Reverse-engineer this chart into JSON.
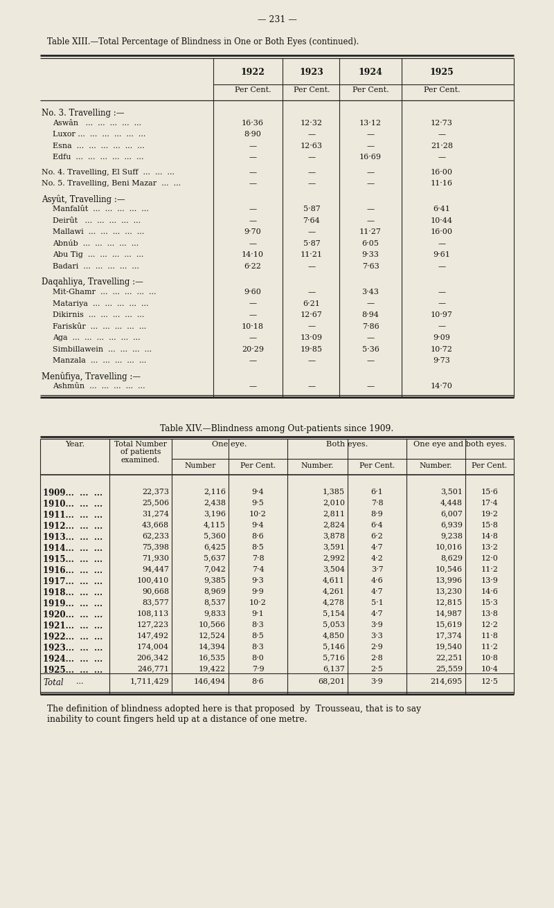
{
  "page_number": "— 231 —",
  "bg_color": "#ede9dc",
  "table13": {
    "title_parts": [
      {
        "text": "Table XIII.",
        "weight": "normal",
        "style": "normal"
      },
      {
        "text": "—",
        "weight": "normal",
        "style": "normal"
      },
      {
        "text": "Total Percentage of Blindness in One or Both Eyes (",
        "weight": "normal",
        "style": "normal"
      },
      {
        "text": "continued",
        "weight": "normal",
        "style": "italic"
      },
      {
        "text": ").",
        "weight": "normal",
        "style": "normal"
      }
    ],
    "title": "Table XIII.—Total Percentage of Blindness in One or Both Eyes (continued).",
    "columns": [
      "1922",
      "1923",
      "1924",
      "1925"
    ],
    "col_sub": [
      "Per Cent.",
      "Per Cent.",
      "Per Cent.",
      "Per Cent."
    ],
    "sections": [
      {
        "header": "No. 3. Travelling :—",
        "is_subheader": false,
        "rows": [
          {
            "label": "Aswân   ...  ...  ...  ...  ...",
            "vals": [
              "16·36",
              "12·32",
              "13·12",
              "12·73"
            ],
            "indent": true
          },
          {
            "label": "Luxor ...  ...  ...  ...  ...  ...",
            "vals": [
              "8·90",
              "—",
              "—",
              "—"
            ],
            "indent": true
          },
          {
            "label": "Esna  ...  ...  ...  ...  ...  ...",
            "vals": [
              "—",
              "12·63",
              "—",
              "21·28"
            ],
            "indent": true
          },
          {
            "label": "Edfu  ...  ...  ...  ...  ...  ...",
            "vals": [
              "—",
              "—",
              "16·69",
              "—"
            ],
            "indent": true
          }
        ]
      },
      {
        "header": null,
        "is_subheader": false,
        "rows": [
          {
            "label": "No. 4. Travelling, El Suff  ...  ...  ...",
            "vals": [
              "—",
              "—",
              "—",
              "16·00"
            ],
            "indent": false
          },
          {
            "label": "No. 5. Travelling, Beni Mazar  ...  ...",
            "vals": [
              "—",
              "—",
              "—",
              "11·16"
            ],
            "indent": false
          }
        ]
      },
      {
        "header": "Asyût, Travelling :—",
        "is_subheader": false,
        "rows": [
          {
            "label": "Manfalût  ...  ...  ...  ...  ...",
            "vals": [
              "—",
              "5·87",
              "—",
              "6·41"
            ],
            "indent": true
          },
          {
            "label": "Deirût   ...  ...  ...  ...  ...",
            "vals": [
              "—",
              "7·64",
              "—",
              "10·44"
            ],
            "indent": true
          },
          {
            "label": "Mallawi  ...  ...  ...  ...  ...",
            "vals": [
              "9·70",
              "—",
              "11·27",
              "16·00"
            ],
            "indent": true
          },
          {
            "label": "Abnúb  ...  ...  ...  ...  ...",
            "vals": [
              "—",
              "5·87",
              "6·05",
              "—"
            ],
            "indent": true
          },
          {
            "label": "Abu Tig  ...  ...  ...  ...  ...",
            "vals": [
              "14·10",
              "11·21",
              "9·33",
              "9·61"
            ],
            "indent": true
          },
          {
            "label": "Badari  ...  ...  ...  ...  ...",
            "vals": [
              "6·22",
              "—",
              "7·63",
              "—"
            ],
            "indent": true
          }
        ]
      },
      {
        "header": "Daqahliya, Travelling :—",
        "is_subheader": false,
        "rows": [
          {
            "label": "Mit-Ghamr  ...  ...  ...  ...  ...",
            "vals": [
              "9·60",
              "—",
              "3·43",
              "—"
            ],
            "indent": true
          },
          {
            "label": "Matariya  ...  ...  ...  ...  ...",
            "vals": [
              "—",
              "6·21",
              "—",
              "—"
            ],
            "indent": true
          },
          {
            "label": "Dikirnis  ...  ...  ...  ...  ...",
            "vals": [
              "—",
              "12·67",
              "8·94",
              "10·97"
            ],
            "indent": true
          },
          {
            "label": "Fariskûr  ...  ...  ...  ...  ...",
            "vals": [
              "10·18",
              "—",
              "7·86",
              "—"
            ],
            "indent": true
          },
          {
            "label": "Aga  ...  ...  ...  ...  ...  ...",
            "vals": [
              "—",
              "13·09",
              "—",
              "9·09"
            ],
            "indent": true
          },
          {
            "label": "Simbillawein  ...  ...  ...  ...",
            "vals": [
              "20·29",
              "19·85",
              "5·36",
              "10·72"
            ],
            "indent": true
          },
          {
            "label": "Manzala  ...  ...  ...  ...  ...",
            "vals": [
              "—",
              "—",
              "—",
              "9·73"
            ],
            "indent": true
          }
        ]
      },
      {
        "header": "Menûfiya, Travelling :—",
        "is_subheader": false,
        "rows": [
          {
            "label": "Ashmûn  ...  ...  ...  ...  ...",
            "vals": [
              "—",
              "—",
              "—",
              "14·70"
            ],
            "indent": true
          }
        ]
      }
    ]
  },
  "table14": {
    "title": "Table XIV.—Blindness among Out-patients since 1909.",
    "rows": [
      [
        "1909...  ...  ...",
        "22,373",
        "2,116",
        "9·4",
        "1,385",
        "6·1",
        "3,501",
        "15·6"
      ],
      [
        "1910...  ...  ...",
        "25,506",
        "2,438",
        "9·5",
        "2,010",
        "7·8",
        "4,448",
        "17·4"
      ],
      [
        "1911...  ...  ...",
        "31,274",
        "3,196",
        "10·2",
        "2,811",
        "8·9",
        "6,007",
        "19·2"
      ],
      [
        "1912...  ...  ...",
        "43,668",
        "4,115",
        "9·4",
        "2,824",
        "6·4",
        "6,939",
        "15·8"
      ],
      [
        "1913...  ...  ...",
        "62,233",
        "5,360",
        "8·6",
        "3,878",
        "6·2",
        "9,238",
        "14·8"
      ],
      [
        "1914...  ...  ...",
        "75,398",
        "6,425",
        "8·5",
        "3,591",
        "4·7",
        "10,016",
        "13·2"
      ],
      [
        "1915...  ...  ...",
        "71,930",
        "5,637",
        "7·8",
        "2,992",
        "4·2",
        "8,629",
        "12·0"
      ],
      [
        "1916...  ...  ...",
        "94,447",
        "7,042",
        "7·4",
        "3,504",
        "3·7",
        "10,546",
        "11·2"
      ],
      [
        "1917...  ...  ...",
        "100,410",
        "9,385",
        "9·3",
        "4,611",
        "4·6",
        "13,996",
        "13·9"
      ],
      [
        "1918...  ...  ...",
        "90,668",
        "8,969",
        "9·9",
        "4,261",
        "4·7",
        "13,230",
        "14·6"
      ],
      [
        "1919...  ...  ...",
        "83,577",
        "8,537",
        "10·2",
        "4,278",
        "5·1",
        "12,815",
        "15·3"
      ],
      [
        "1920...  ...  ...",
        "108,113",
        "9,833",
        "9·1",
        "5,154",
        "4·7",
        "14,987",
        "13·8"
      ],
      [
        "1921...  ...  ...",
        "127,223",
        "10,566",
        "8·3",
        "5,053",
        "3·9",
        "15,619",
        "12·2"
      ],
      [
        "1922...  ...  ...",
        "147,492",
        "12,524",
        "8·5",
        "4,850",
        "3·3",
        "17,374",
        "11·8"
      ],
      [
        "1923...  ...  ...",
        "174,004",
        "14,394",
        "8·3",
        "5,146",
        "2·9",
        "19,540",
        "11·2"
      ],
      [
        "1924...  ...  ...",
        "206,342",
        "16,535",
        "8·0",
        "5,716",
        "2·8",
        "22,251",
        "10·8"
      ],
      [
        "1925...  ...  ...",
        "246,771",
        "19,422",
        "7·9",
        "6,137",
        "2·5",
        "25,559",
        "10·4"
      ]
    ],
    "total_row": [
      "Total",
      "...",
      "1,711,429",
      "146,494",
      "8·6",
      "68,201",
      "3·9",
      "214,695",
      "12·5"
    ],
    "footnote": "The definition of blindness adopted here is that proposed  by  Trousseau, that is to say\ninability to count fingers held up at a distance of one metre."
  }
}
